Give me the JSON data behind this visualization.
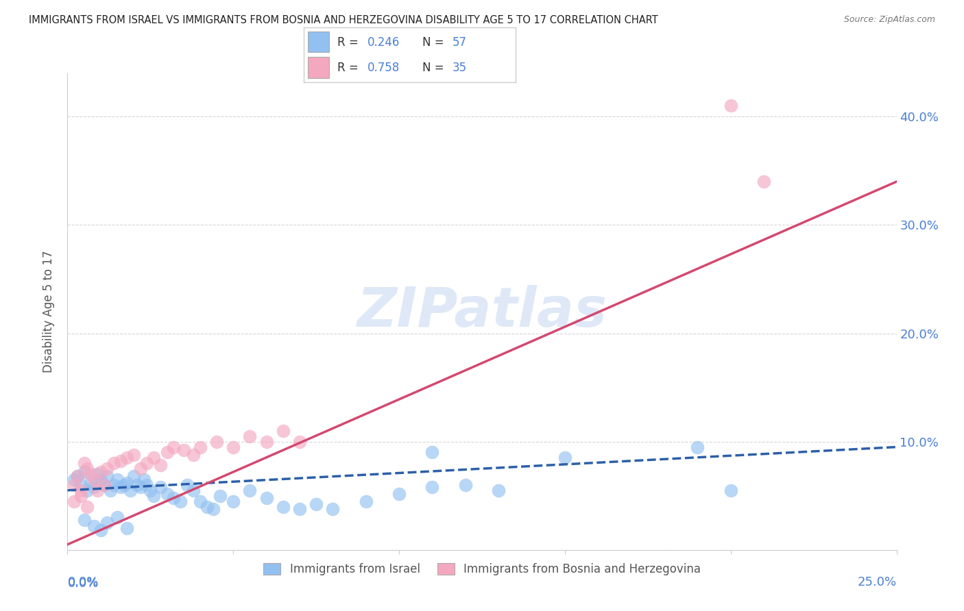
{
  "title": "IMMIGRANTS FROM ISRAEL VS IMMIGRANTS FROM BOSNIA AND HERZEGOVINA DISABILITY AGE 5 TO 17 CORRELATION CHART",
  "source": "Source: ZipAtlas.com",
  "ylabel": "Disability Age 5 to 17",
  "right_yticks": [
    "",
    "10.0%",
    "20.0%",
    "30.0%",
    "40.0%"
  ],
  "right_ytick_vals": [
    0.0,
    0.1,
    0.2,
    0.3,
    0.4
  ],
  "xlim": [
    0.0,
    0.25
  ],
  "ylim": [
    0.0,
    0.44
  ],
  "watermark_text": "ZIPatlas",
  "legend_r1": "R = 0.246",
  "legend_n1": "N = 57",
  "legend_r2": "R = 0.758",
  "legend_n2": "N = 35",
  "legend_labels_bottom": [
    "Immigrants from Israel",
    "Immigrants from Bosnia and Herzegovina"
  ],
  "israel_color": "#92c0f0",
  "bosnia_color": "#f4a8c0",
  "israel_line_color": "#2c5fa8",
  "bosnia_line_color": "#d44870",
  "grid_color": "#cccccc",
  "background_color": "#ffffff",
  "title_color": "#222222",
  "right_axis_color": "#4a7fd4",
  "israel_scatter_x": [
    0.002,
    0.003,
    0.004,
    0.005,
    0.006,
    0.007,
    0.008,
    0.009,
    0.01,
    0.011,
    0.012,
    0.013,
    0.014,
    0.015,
    0.016,
    0.017,
    0.018,
    0.019,
    0.02,
    0.021,
    0.022,
    0.023,
    0.024,
    0.025,
    0.026,
    0.028,
    0.03,
    0.032,
    0.034,
    0.036,
    0.038,
    0.04,
    0.042,
    0.044,
    0.046,
    0.05,
    0.055,
    0.06,
    0.065,
    0.07,
    0.075,
    0.08,
    0.09,
    0.1,
    0.11,
    0.12,
    0.13,
    0.005,
    0.008,
    0.01,
    0.012,
    0.015,
    0.018,
    0.11,
    0.15,
    0.19,
    0.2
  ],
  "israel_scatter_y": [
    0.065,
    0.068,
    0.06,
    0.072,
    0.055,
    0.062,
    0.058,
    0.07,
    0.065,
    0.06,
    0.068,
    0.055,
    0.06,
    0.065,
    0.058,
    0.06,
    0.062,
    0.055,
    0.068,
    0.06,
    0.058,
    0.065,
    0.06,
    0.055,
    0.05,
    0.058,
    0.052,
    0.048,
    0.045,
    0.06,
    0.055,
    0.045,
    0.04,
    0.038,
    0.05,
    0.045,
    0.055,
    0.048,
    0.04,
    0.038,
    0.042,
    0.038,
    0.045,
    0.052,
    0.058,
    0.06,
    0.055,
    0.028,
    0.022,
    0.018,
    0.025,
    0.03,
    0.02,
    0.09,
    0.085,
    0.095,
    0.055
  ],
  "bosnia_scatter_x": [
    0.002,
    0.003,
    0.004,
    0.005,
    0.006,
    0.007,
    0.008,
    0.009,
    0.01,
    0.011,
    0.012,
    0.014,
    0.016,
    0.018,
    0.02,
    0.022,
    0.024,
    0.026,
    0.028,
    0.03,
    0.032,
    0.035,
    0.038,
    0.04,
    0.045,
    0.05,
    0.055,
    0.06,
    0.065,
    0.07,
    0.002,
    0.004,
    0.006,
    0.2,
    0.21
  ],
  "bosnia_scatter_y": [
    0.06,
    0.068,
    0.055,
    0.08,
    0.075,
    0.07,
    0.065,
    0.055,
    0.072,
    0.06,
    0.075,
    0.08,
    0.082,
    0.085,
    0.088,
    0.075,
    0.08,
    0.085,
    0.078,
    0.09,
    0.095,
    0.092,
    0.088,
    0.095,
    0.1,
    0.095,
    0.105,
    0.1,
    0.11,
    0.1,
    0.045,
    0.05,
    0.04,
    0.41,
    0.34
  ],
  "israel_trend_x": [
    0.0,
    0.25
  ],
  "israel_trend_y": [
    0.055,
    0.095
  ],
  "bosnia_trend_x": [
    0.0,
    0.25
  ],
  "bosnia_trend_y": [
    0.005,
    0.34
  ]
}
